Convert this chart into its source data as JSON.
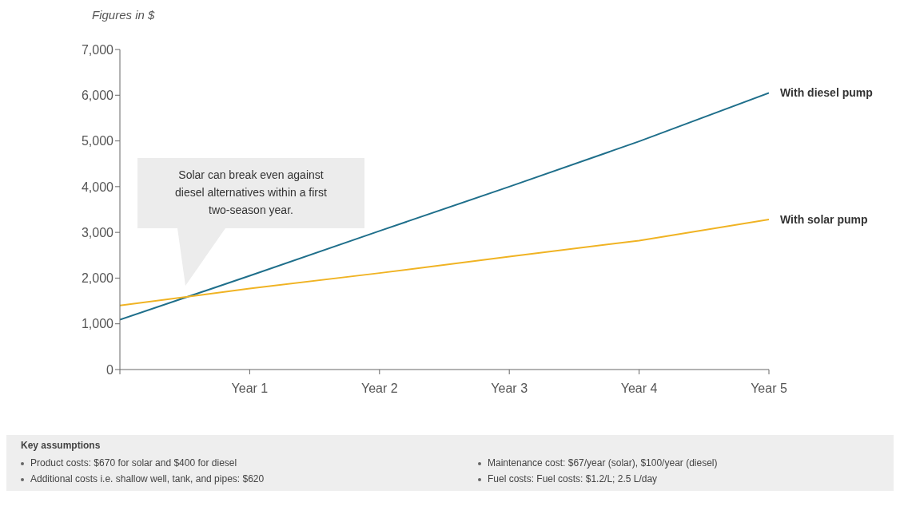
{
  "chart_data": {
    "type": "line",
    "ylabel": "Figures in $",
    "categories": [
      null,
      "Year 1",
      "Year 2",
      "Year 3",
      "Year 4",
      "Year 5"
    ],
    "series": [
      {
        "name": "With diesel pump",
        "color": "#1f6f8b",
        "values": [
          1090,
          2050,
          3030,
          4000,
          4990,
          6050
        ]
      },
      {
        "name": "With solar pump",
        "color": "#f0b323",
        "values": [
          1400,
          1770,
          2110,
          2470,
          2820,
          3280
        ]
      }
    ],
    "ylim": [
      0,
      7000
    ],
    "yticks": [
      {
        "value": 0,
        "label": "0"
      },
      {
        "value": 1000,
        "label": "1,000"
      },
      {
        "value": 2000,
        "label": "2,000"
      },
      {
        "value": 3000,
        "label": "3,000"
      },
      {
        "value": 4000,
        "label": "4,000"
      },
      {
        "value": 5000,
        "label": "5,000"
      },
      {
        "value": 6000,
        "label": "6,000"
      },
      {
        "value": 7000,
        "label": "7,000"
      }
    ],
    "grid": false,
    "legend": false,
    "marker": "none",
    "line_style": "solid",
    "annotations": [
      "Solar can break even against diesel alternatives within a first two-season year.",
      "Key assumptions",
      "Product costs: $670 for solar and $400 for diesel",
      "Additional costs i.e. shallow well, tank, and pipes: $620",
      "Maintenance cost: $67/year (solar), $100/year (diesel)",
      "Fuel costs: Fuel costs: $1.2/L; 2.5 L/day"
    ]
  }
}
